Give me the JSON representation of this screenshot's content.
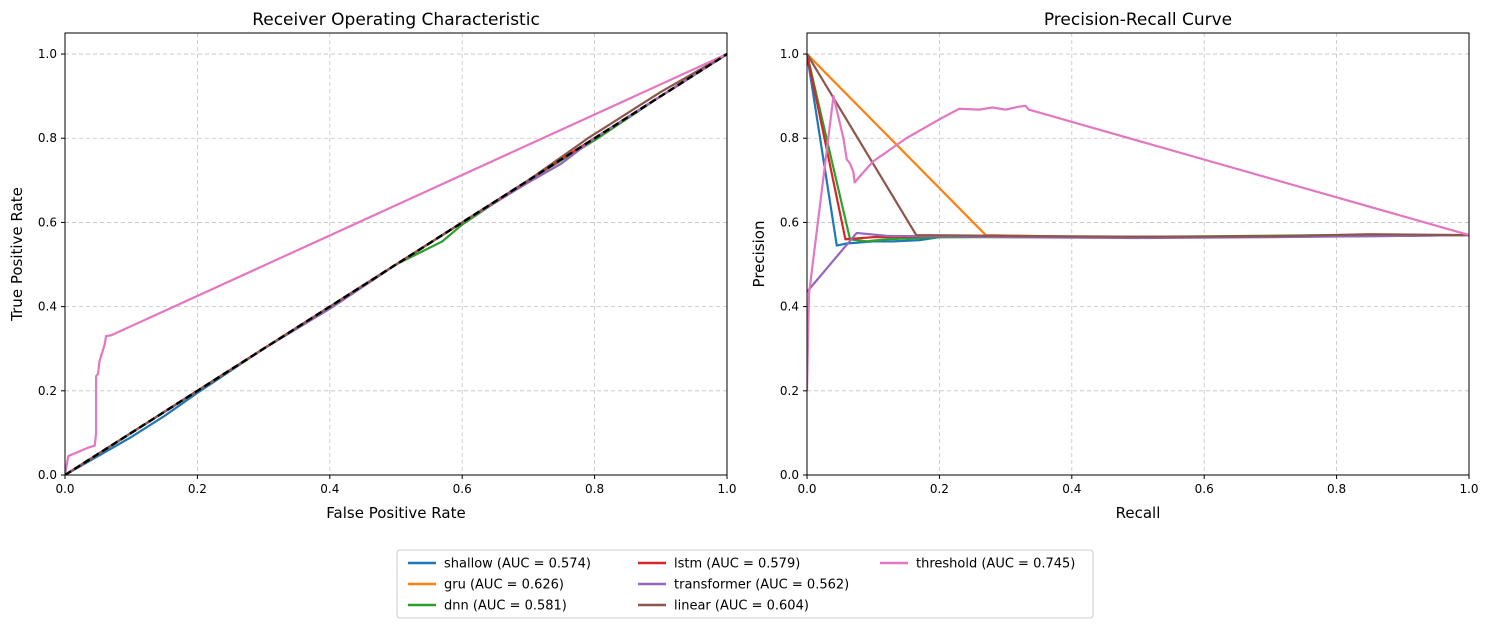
{
  "colors": {
    "shallow": "#1f77b4",
    "gru": "#ff7f0e",
    "dnn": "#2ca02c",
    "lstm": "#d62728",
    "transformer": "#9467bd",
    "linear": "#8c564b",
    "threshold": "#e377c2",
    "baseline": "#000000",
    "grid": "#b0b0b0"
  },
  "legend": {
    "location": "bottom-center",
    "columns": 3,
    "entries": [
      "shallow (AUC = 0.574)",
      "gru (AUC = 0.626)",
      "dnn (AUC = 0.581)",
      "lstm (AUC = 0.579)",
      "transformer (AUC = 0.562)",
      "linear (AUC = 0.604)",
      "threshold (AUC = 0.745)"
    ]
  },
  "chart_data": [
    {
      "type": "line",
      "title": "Receiver Operating Characteristic",
      "xlabel": "False Positive Rate",
      "ylabel": "True Positive Rate",
      "xlim": [
        0,
        1
      ],
      "ylim": [
        0,
        1.05
      ],
      "xticks": [
        "0.0",
        "0.2",
        "0.4",
        "0.6",
        "0.8",
        "1.0"
      ],
      "yticks": [
        "0.0",
        "0.2",
        "0.4",
        "0.6",
        "0.8",
        "1.0"
      ],
      "grid": true,
      "series": [
        {
          "key": "shallow",
          "points": [
            [
              0,
              0
            ],
            [
              0.05,
              0.045
            ],
            [
              0.1,
              0.09
            ],
            [
              0.15,
              0.14
            ],
            [
              0.2,
              0.195
            ],
            [
              0.3,
              0.3
            ],
            [
              0.4,
              0.395
            ],
            [
              0.5,
              0.5
            ],
            [
              0.6,
              0.6
            ],
            [
              0.7,
              0.7
            ],
            [
              0.8,
              0.8
            ],
            [
              0.9,
              0.9
            ],
            [
              1,
              1
            ]
          ]
        },
        {
          "key": "gru",
          "points": [
            [
              0,
              0
            ],
            [
              0.1,
              0.1
            ],
            [
              0.2,
              0.2
            ],
            [
              0.3,
              0.3
            ],
            [
              0.4,
              0.4
            ],
            [
              0.5,
              0.5
            ],
            [
              0.6,
              0.6
            ],
            [
              0.7,
              0.7
            ],
            [
              0.8,
              0.8
            ],
            [
              0.9,
              0.9
            ],
            [
              1,
              1
            ]
          ]
        },
        {
          "key": "dnn",
          "points": [
            [
              0,
              0
            ],
            [
              0.1,
              0.1
            ],
            [
              0.2,
              0.2
            ],
            [
              0.3,
              0.3
            ],
            [
              0.4,
              0.4
            ],
            [
              0.5,
              0.5
            ],
            [
              0.57,
              0.555
            ],
            [
              0.6,
              0.595
            ],
            [
              0.7,
              0.7
            ],
            [
              0.8,
              0.795
            ],
            [
              0.9,
              0.9
            ],
            [
              1,
              1
            ]
          ]
        },
        {
          "key": "lstm",
          "points": [
            [
              0,
              0
            ],
            [
              0.1,
              0.1
            ],
            [
              0.2,
              0.2
            ],
            [
              0.3,
              0.3
            ],
            [
              0.4,
              0.4
            ],
            [
              0.5,
              0.5
            ],
            [
              0.6,
              0.6
            ],
            [
              0.7,
              0.7
            ],
            [
              0.8,
              0.8
            ],
            [
              0.9,
              0.9
            ],
            [
              1,
              1
            ]
          ]
        },
        {
          "key": "transformer",
          "points": [
            [
              0,
              0
            ],
            [
              0.1,
              0.1
            ],
            [
              0.2,
              0.2
            ],
            [
              0.3,
              0.3
            ],
            [
              0.4,
              0.395
            ],
            [
              0.5,
              0.5
            ],
            [
              0.6,
              0.6
            ],
            [
              0.7,
              0.695
            ],
            [
              0.75,
              0.74
            ],
            [
              0.8,
              0.8
            ],
            [
              0.9,
              0.9
            ],
            [
              1,
              1
            ]
          ]
        },
        {
          "key": "linear",
          "points": [
            [
              0,
              0
            ],
            [
              0.1,
              0.1
            ],
            [
              0.2,
              0.2
            ],
            [
              0.3,
              0.3
            ],
            [
              0.4,
              0.4
            ],
            [
              0.5,
              0.5
            ],
            [
              0.6,
              0.6
            ],
            [
              0.7,
              0.7
            ],
            [
              0.79,
              0.8
            ],
            [
              0.81,
              0.82
            ],
            [
              0.9,
              0.91
            ],
            [
              1,
              1
            ]
          ]
        },
        {
          "key": "threshold",
          "points": [
            [
              0,
              0
            ],
            [
              0.005,
              0.045
            ],
            [
              0.02,
              0.055
            ],
            [
              0.035,
              0.065
            ],
            [
              0.045,
              0.07
            ],
            [
              0.047,
              0.1
            ],
            [
              0.047,
              0.235
            ],
            [
              0.05,
              0.24
            ],
            [
              0.052,
              0.27
            ],
            [
              0.055,
              0.285
            ],
            [
              0.058,
              0.3
            ],
            [
              0.06,
              0.31
            ],
            [
              0.062,
              0.33
            ],
            [
              0.07,
              0.332
            ],
            [
              1,
              1
            ]
          ]
        },
        {
          "key": "baseline",
          "dashed": true,
          "points": [
            [
              0,
              0
            ],
            [
              1,
              1
            ]
          ]
        }
      ]
    },
    {
      "type": "line",
      "title": "Precision-Recall Curve",
      "xlabel": "Recall",
      "ylabel": "Precision",
      "xlim": [
        0,
        1
      ],
      "ylim": [
        0,
        1.05
      ],
      "xticks": [
        "0.0",
        "0.2",
        "0.4",
        "0.6",
        "0.8",
        "1.0"
      ],
      "yticks": [
        "0.0",
        "0.2",
        "0.4",
        "0.6",
        "0.8",
        "1.0"
      ],
      "grid": true,
      "series": [
        {
          "key": "shallow",
          "points": [
            [
              0,
              1
            ],
            [
              0.045,
              0.545
            ],
            [
              0.06,
              0.55
            ],
            [
              0.1,
              0.555
            ],
            [
              0.13,
              0.555
            ],
            [
              0.17,
              0.558
            ],
            [
              0.2,
              0.565
            ],
            [
              0.3,
              0.566
            ],
            [
              0.5,
              0.565
            ],
            [
              0.7,
              0.566
            ],
            [
              0.9,
              0.568
            ],
            [
              1,
              0.57
            ]
          ]
        },
        {
          "key": "gru",
          "points": [
            [
              0,
              1
            ],
            [
              0.27,
              0.57
            ],
            [
              0.4,
              0.566
            ],
            [
              0.6,
              0.566
            ],
            [
              0.8,
              0.568
            ],
            [
              1,
              0.57
            ]
          ]
        },
        {
          "key": "dnn",
          "points": [
            [
              0,
              1
            ],
            [
              0.065,
              0.56
            ],
            [
              0.09,
              0.555
            ],
            [
              0.12,
              0.56
            ],
            [
              0.2,
              0.565
            ],
            [
              0.4,
              0.565
            ],
            [
              0.6,
              0.567
            ],
            [
              0.8,
              0.57
            ],
            [
              1,
              0.57
            ]
          ]
        },
        {
          "key": "lstm",
          "points": [
            [
              0,
              1
            ],
            [
              0.058,
              0.56
            ],
            [
              0.1,
              0.565
            ],
            [
              0.2,
              0.567
            ],
            [
              0.4,
              0.565
            ],
            [
              0.6,
              0.566
            ],
            [
              0.8,
              0.568
            ],
            [
              1,
              0.57
            ]
          ]
        },
        {
          "key": "transformer",
          "points": [
            [
              0,
              0.435
            ],
            [
              0.075,
              0.575
            ],
            [
              0.12,
              0.568
            ],
            [
              0.2,
              0.567
            ],
            [
              0.3,
              0.565
            ],
            [
              0.5,
              0.563
            ],
            [
              0.7,
              0.565
            ],
            [
              0.9,
              0.568
            ],
            [
              1,
              0.57
            ]
          ]
        },
        {
          "key": "linear",
          "points": [
            [
              0,
              1
            ],
            [
              0.165,
              0.57
            ],
            [
              0.3,
              0.568
            ],
            [
              0.5,
              0.566
            ],
            [
              0.7,
              0.567
            ],
            [
              0.85,
              0.572
            ],
            [
              1,
              0.57
            ]
          ]
        },
        {
          "key": "threshold",
          "points": [
            [
              0,
              0.2
            ],
            [
              0.003,
              0.43
            ],
            [
              0.04,
              0.9
            ],
            [
              0.055,
              0.8
            ],
            [
              0.06,
              0.75
            ],
            [
              0.065,
              0.74
            ],
            [
              0.07,
              0.72
            ],
            [
              0.072,
              0.695
            ],
            [
              0.08,
              0.71
            ],
            [
              0.1,
              0.745
            ],
            [
              0.15,
              0.8
            ],
            [
              0.2,
              0.845
            ],
            [
              0.23,
              0.87
            ],
            [
              0.26,
              0.868
            ],
            [
              0.28,
              0.873
            ],
            [
              0.3,
              0.868
            ],
            [
              0.32,
              0.875
            ],
            [
              0.33,
              0.877
            ],
            [
              0.335,
              0.868
            ],
            [
              1,
              0.57
            ]
          ]
        }
      ]
    }
  ]
}
